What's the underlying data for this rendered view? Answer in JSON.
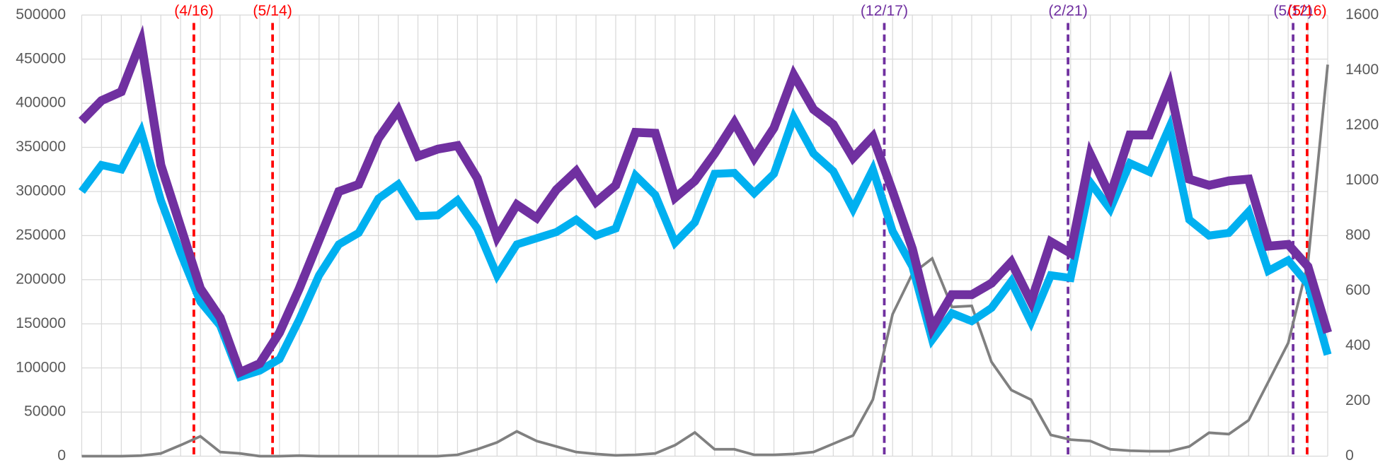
{
  "chart_data": {
    "type": "line",
    "categories": [
      null,
      null,
      null,
      null,
      null,
      null,
      null,
      null,
      null,
      null,
      null,
      null,
      null,
      null,
      null,
      null,
      null,
      null,
      null,
      null,
      null,
      null,
      null,
      null,
      null,
      null,
      null,
      null,
      null,
      null,
      null,
      null,
      null,
      null,
      null,
      null,
      null,
      null,
      null,
      null,
      null,
      null,
      null,
      null,
      null,
      null,
      null,
      null,
      null,
      null,
      null,
      null,
      null,
      null,
      null,
      null,
      null,
      null,
      null,
      null,
      null,
      null,
      null,
      null
    ],
    "series": [
      {
        "color": "#7030a0",
        "width": 10,
        "values": [
          380000,
          403000,
          413000,
          470000,
          330000,
          260000,
          190000,
          157000,
          95000,
          105000,
          140000,
          190000,
          245000,
          300000,
          308000,
          360000,
          392000,
          340000,
          348000,
          352000,
          315000,
          248000,
          285000,
          270000,
          302000,
          323000,
          288000,
          307000,
          367000,
          366000,
          293000,
          312000,
          343000,
          378000,
          338000,
          372000,
          432000,
          393000,
          376000,
          338000,
          362000,
          300000,
          235000,
          145000,
          183000,
          183000,
          196000,
          220000,
          175000,
          243000,
          230000,
          342000,
          295000,
          364000,
          364000,
          420000,
          314000,
          307000,
          312000,
          314000,
          238000,
          240000,
          215000,
          140000
        ]
      },
      {
        "color": "#00b0f0",
        "width": 9,
        "values": [
          300000,
          330000,
          325000,
          368000,
          290000,
          230000,
          175000,
          148000,
          90000,
          97000,
          110000,
          155000,
          205000,
          240000,
          253000,
          292000,
          308000,
          272000,
          273000,
          290000,
          258000,
          205000,
          240000,
          247000,
          254000,
          268000,
          250000,
          258000,
          318000,
          296000,
          242000,
          265000,
          320000,
          321000,
          298000,
          320000,
          384000,
          343000,
          323000,
          280000,
          325000,
          255000,
          215000,
          132000,
          162000,
          153000,
          168000,
          198000,
          152000,
          205000,
          202000,
          310000,
          280000,
          332000,
          322000,
          373000,
          268000,
          250000,
          253000,
          277000,
          210000,
          222000,
          195000,
          115000
        ]
      },
      {
        "color": "#808080",
        "width": 3,
        "axis": "y2",
        "values": [
          0,
          0,
          0,
          2,
          10,
          40,
          72,
          15,
          10,
          0,
          0,
          2,
          0,
          0,
          0,
          0,
          0,
          0,
          0,
          5,
          25,
          50,
          90,
          55,
          35,
          15,
          8,
          3,
          5,
          10,
          40,
          86,
          25,
          25,
          5,
          5,
          8,
          15,
          45,
          75,
          205,
          515,
          662,
          717,
          541,
          545,
          342,
          240,
          205,
          77,
          60,
          55,
          25,
          20,
          18,
          18,
          35,
          85,
          80,
          130,
          270,
          410,
          700,
          1420
        ]
      }
    ],
    "ylim": [
      0,
      500000
    ],
    "yticks": [
      0,
      50000,
      100000,
      150000,
      200000,
      250000,
      300000,
      350000,
      400000,
      450000,
      500000
    ],
    "y2lim": [
      0,
      1600
    ],
    "y2ticks": [
      0,
      200,
      400,
      600,
      800,
      1000,
      1200,
      1400,
      1600
    ],
    "grid": true,
    "annotations": [
      {
        "label": "(4/16)",
        "x": 5.67,
        "color": "#ff0000"
      },
      {
        "label": "(5/14)",
        "x": 9.65,
        "color": "#ff0000"
      },
      {
        "label": "(12/17)",
        "x": 40.58,
        "color": "#7030a0"
      },
      {
        "label": "(2/21)",
        "x": 49.87,
        "color": "#7030a0"
      },
      {
        "label": "(5/12)",
        "x": 61.25,
        "color": "#7030a0"
      },
      {
        "label": "(5/16)",
        "x": 61.96,
        "color": "#ff0000"
      }
    ]
  }
}
